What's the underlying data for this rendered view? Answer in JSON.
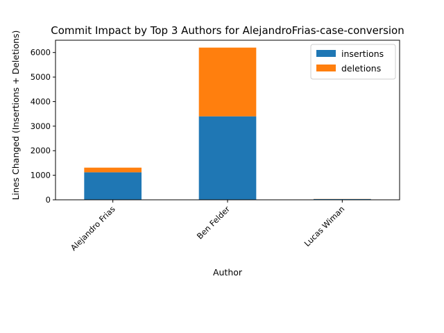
{
  "chart_data": {
    "type": "bar",
    "stacked": true,
    "title": "Commit Impact by Top 3 Authors for AlejandroFrias-case-conversion",
    "xlabel": "Author",
    "ylabel": "Lines Changed (Insertions + Deletions)",
    "categories": [
      "Alejandro Frias",
      "Ben Felder",
      "Lucas Wiman"
    ],
    "series": [
      {
        "name": "insertions",
        "values": [
          1120,
          3400,
          30
        ],
        "color": "#1f77b4"
      },
      {
        "name": "deletions",
        "values": [
          190,
          2800,
          5
        ],
        "color": "#ff7f0e"
      }
    ],
    "ylim": [
      0,
      6500
    ],
    "yticks": [
      0,
      1000,
      2000,
      3000,
      4000,
      5000,
      6000
    ],
    "legend_position": "top-right",
    "grid": false
  }
}
